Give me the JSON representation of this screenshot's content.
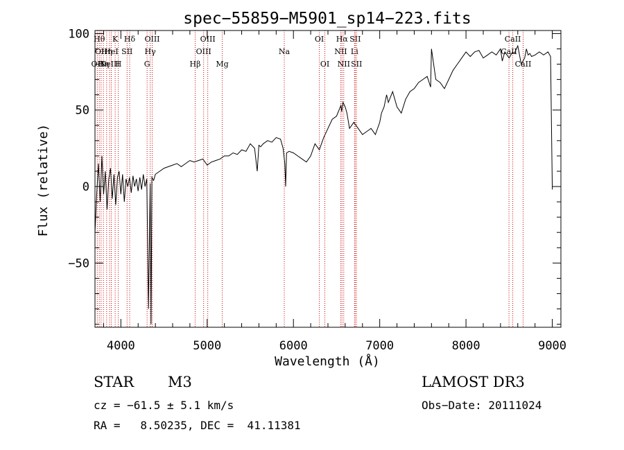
{
  "chart_data": {
    "type": "line",
    "title": "spec−55859−M5901_sp14−223.fits",
    "xlabel": "Wavelength (Å)",
    "ylabel": "Flux (relative)",
    "xlim": [
      3700,
      9100
    ],
    "ylim": [
      -92,
      102
    ],
    "x_ticks": [
      {
        "value": 4000,
        "label": "4000"
      },
      {
        "value": 5000,
        "label": "5000"
      },
      {
        "value": 6000,
        "label": "6000"
      },
      {
        "value": 7000,
        "label": "7000"
      },
      {
        "value": 8000,
        "label": "8000"
      },
      {
        "value": 9000,
        "label": "9000"
      }
    ],
    "y_ticks": [
      {
        "value": 100,
        "label": "100"
      },
      {
        "value": 50,
        "label": "50"
      },
      {
        "value": 0,
        "label": "0"
      },
      {
        "value": -50,
        "label": "−50"
      }
    ],
    "series": [
      {
        "name": "flux",
        "x": [
          3700,
          3720,
          3740,
          3760,
          3780,
          3800,
          3820,
          3840,
          3860,
          3880,
          3900,
          3920,
          3940,
          3960,
          3980,
          4000,
          4020,
          4040,
          4060,
          4080,
          4100,
          4120,
          4140,
          4160,
          4180,
          4200,
          4220,
          4240,
          4260,
          4280,
          4300,
          4320,
          4340,
          4350,
          4360,
          4380,
          4400,
          4450,
          4500,
          4550,
          4600,
          4650,
          4700,
          4750,
          4800,
          4850,
          4900,
          4950,
          5000,
          5050,
          5100,
          5150,
          5200,
          5250,
          5300,
          5350,
          5400,
          5450,
          5500,
          5550,
          5580,
          5600,
          5620,
          5650,
          5700,
          5750,
          5800,
          5850,
          5880,
          5900,
          5910,
          5920,
          5950,
          6000,
          6050,
          6100,
          6150,
          6200,
          6250,
          6300,
          6350,
          6400,
          6450,
          6500,
          6550,
          6560,
          6575,
          6600,
          6620,
          6650,
          6700,
          6750,
          6800,
          6850,
          6900,
          6950,
          7000,
          7020,
          7050,
          7080,
          7100,
          7150,
          7200,
          7250,
          7300,
          7350,
          7400,
          7450,
          7500,
          7550,
          7590,
          7600,
          7650,
          7700,
          7750,
          7800,
          7850,
          7900,
          7950,
          8000,
          8050,
          8100,
          8150,
          8200,
          8250,
          8300,
          8350,
          8400,
          8420,
          8450,
          8500,
          8520,
          8540,
          8560,
          8600,
          8640,
          8660,
          8680,
          8700,
          8720,
          8740,
          8760,
          8800,
          8850,
          8900,
          8950,
          8980,
          9000
        ],
        "y": [
          -30,
          -5,
          15,
          -10,
          20,
          -5,
          10,
          -15,
          5,
          12,
          -8,
          8,
          -12,
          6,
          10,
          -5,
          8,
          -10,
          5,
          0,
          6,
          -4,
          7,
          0,
          5,
          -3,
          6,
          -2,
          8,
          0,
          5,
          -80,
          2,
          -90,
          6,
          4,
          8,
          10,
          12,
          13,
          14,
          15,
          13,
          15,
          17,
          16,
          17,
          18,
          14,
          16,
          17,
          18,
          20,
          20,
          22,
          21,
          24,
          23,
          28,
          25,
          10,
          27,
          26,
          28,
          30,
          29,
          32,
          31,
          25,
          15,
          0,
          22,
          23,
          22,
          20,
          18,
          16,
          20,
          28,
          24,
          32,
          38,
          44,
          46,
          53,
          49,
          55,
          52,
          48,
          38,
          42,
          38,
          34,
          36,
          38,
          34,
          42,
          48,
          52,
          60,
          55,
          62,
          52,
          48,
          57,
          62,
          64,
          68,
          70,
          72,
          65,
          90,
          70,
          68,
          64,
          70,
          76,
          80,
          84,
          88,
          85,
          88,
          89,
          84,
          86,
          88,
          86,
          90,
          82,
          88,
          84,
          86,
          88,
          87,
          92,
          80,
          82,
          84,
          90,
          86,
          87,
          85,
          86,
          88,
          86,
          88,
          85,
          -2
        ]
      }
    ],
    "lines": [
      {
        "w": 3727,
        "label": "OII",
        "row": 3
      },
      {
        "w": 3750,
        "label": "Hθ",
        "row": 1
      },
      {
        "w": 3771,
        "label": "OII",
        "row": 2
      },
      {
        "w": 3798,
        "label": "Hη",
        "row": 3
      },
      {
        "w": 3835,
        "label": "Hη",
        "row": 2
      },
      {
        "w": 3869,
        "label": "NeIII",
        "row": 3
      },
      {
        "w": 3889,
        "label": "HeI",
        "row": 2
      },
      {
        "w": 3934,
        "label": "K",
        "row": 1
      },
      {
        "w": 3970,
        "label": "H",
        "row": 3
      },
      {
        "w": 4072,
        "label": "SII",
        "row": 2
      },
      {
        "w": 4102,
        "label": "Hδ",
        "row": 1
      },
      {
        "w": 4304,
        "label": "G",
        "row": 3
      },
      {
        "w": 4340,
        "label": "Hγ",
        "row": 2
      },
      {
        "w": 4363,
        "label": "OIII",
        "row": 1
      },
      {
        "w": 4861,
        "label": "Hβ",
        "row": 3
      },
      {
        "w": 4959,
        "label": "OIII",
        "row": 2
      },
      {
        "w": 5007,
        "label": "OIII",
        "row": 1
      },
      {
        "w": 5175,
        "label": "Mg",
        "row": 3
      },
      {
        "w": 5894,
        "label": "Na",
        "row": 2
      },
      {
        "w": 6300,
        "label": "OI",
        "row": 1
      },
      {
        "w": 6364,
        "label": "OI",
        "row": 3
      },
      {
        "w": 6548,
        "label": "NII",
        "row": 2
      },
      {
        "w": 6563,
        "label": "Hα",
        "row": 1
      },
      {
        "w": 6583,
        "label": "NII",
        "row": 3
      },
      {
        "w": 6708,
        "label": "Li",
        "row": 2
      },
      {
        "w": 6716,
        "label": "SII",
        "row": 1
      },
      {
        "w": 6731,
        "label": "SII",
        "row": 3
      },
      {
        "w": 8498,
        "label": "CaII",
        "row": 2
      },
      {
        "w": 8542,
        "label": "CaII",
        "row": 1
      },
      {
        "w": 8662,
        "label": "CaII",
        "row": 3
      }
    ]
  },
  "info": {
    "object_class": "STAR",
    "subclass": "M3",
    "survey": "LAMOST DR3",
    "cz": "cz = −61.5 ± 5.1 km/s",
    "obs_date": "Obs−Date: 20111024",
    "radec": "RA =   8.50235, DEC =  41.11381"
  },
  "colors": {
    "line_marker": "#cc0000",
    "spectrum": "#000000",
    "axis": "#000000",
    "background": "#ffffff"
  }
}
